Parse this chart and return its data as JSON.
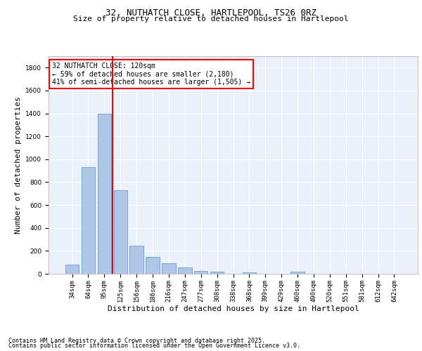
{
  "title": "32, NUTHATCH CLOSE, HARTLEPOOL, TS26 0RZ",
  "subtitle": "Size of property relative to detached houses in Hartlepool",
  "xlabel": "Distribution of detached houses by size in Hartlepool",
  "ylabel": "Number of detached properties",
  "categories": [
    "34sqm",
    "64sqm",
    "95sqm",
    "125sqm",
    "156sqm",
    "186sqm",
    "216sqm",
    "247sqm",
    "277sqm",
    "308sqm",
    "338sqm",
    "368sqm",
    "399sqm",
    "429sqm",
    "460sqm",
    "490sqm",
    "520sqm",
    "551sqm",
    "581sqm",
    "612sqm",
    "642sqm"
  ],
  "values": [
    80,
    930,
    1400,
    730,
    245,
    145,
    90,
    55,
    25,
    20,
    0,
    15,
    0,
    0,
    20,
    0,
    0,
    0,
    0,
    0,
    0
  ],
  "bar_color": "#aec6e8",
  "bar_edge_color": "#5a8fc4",
  "vline_color": "red",
  "vline_index": 3,
  "annotation_text": "32 NUTHATCH CLOSE: 120sqm\n← 59% of detached houses are smaller (2,180)\n41% of semi-detached houses are larger (1,505) →",
  "ylim": [
    0,
    1900
  ],
  "yticks": [
    0,
    200,
    400,
    600,
    800,
    1000,
    1200,
    1400,
    1600,
    1800
  ],
  "background_color": "#eaf1fb",
  "grid_color": "#ffffff",
  "footer_line1": "Contains HM Land Registry data © Crown copyright and database right 2025.",
  "footer_line2": "Contains public sector information licensed under the Open Government Licence v3.0.",
  "title_fontsize": 9,
  "subtitle_fontsize": 8,
  "axis_label_fontsize": 8,
  "tick_fontsize": 6.5,
  "footer_fontsize": 6,
  "annotation_fontsize": 7
}
